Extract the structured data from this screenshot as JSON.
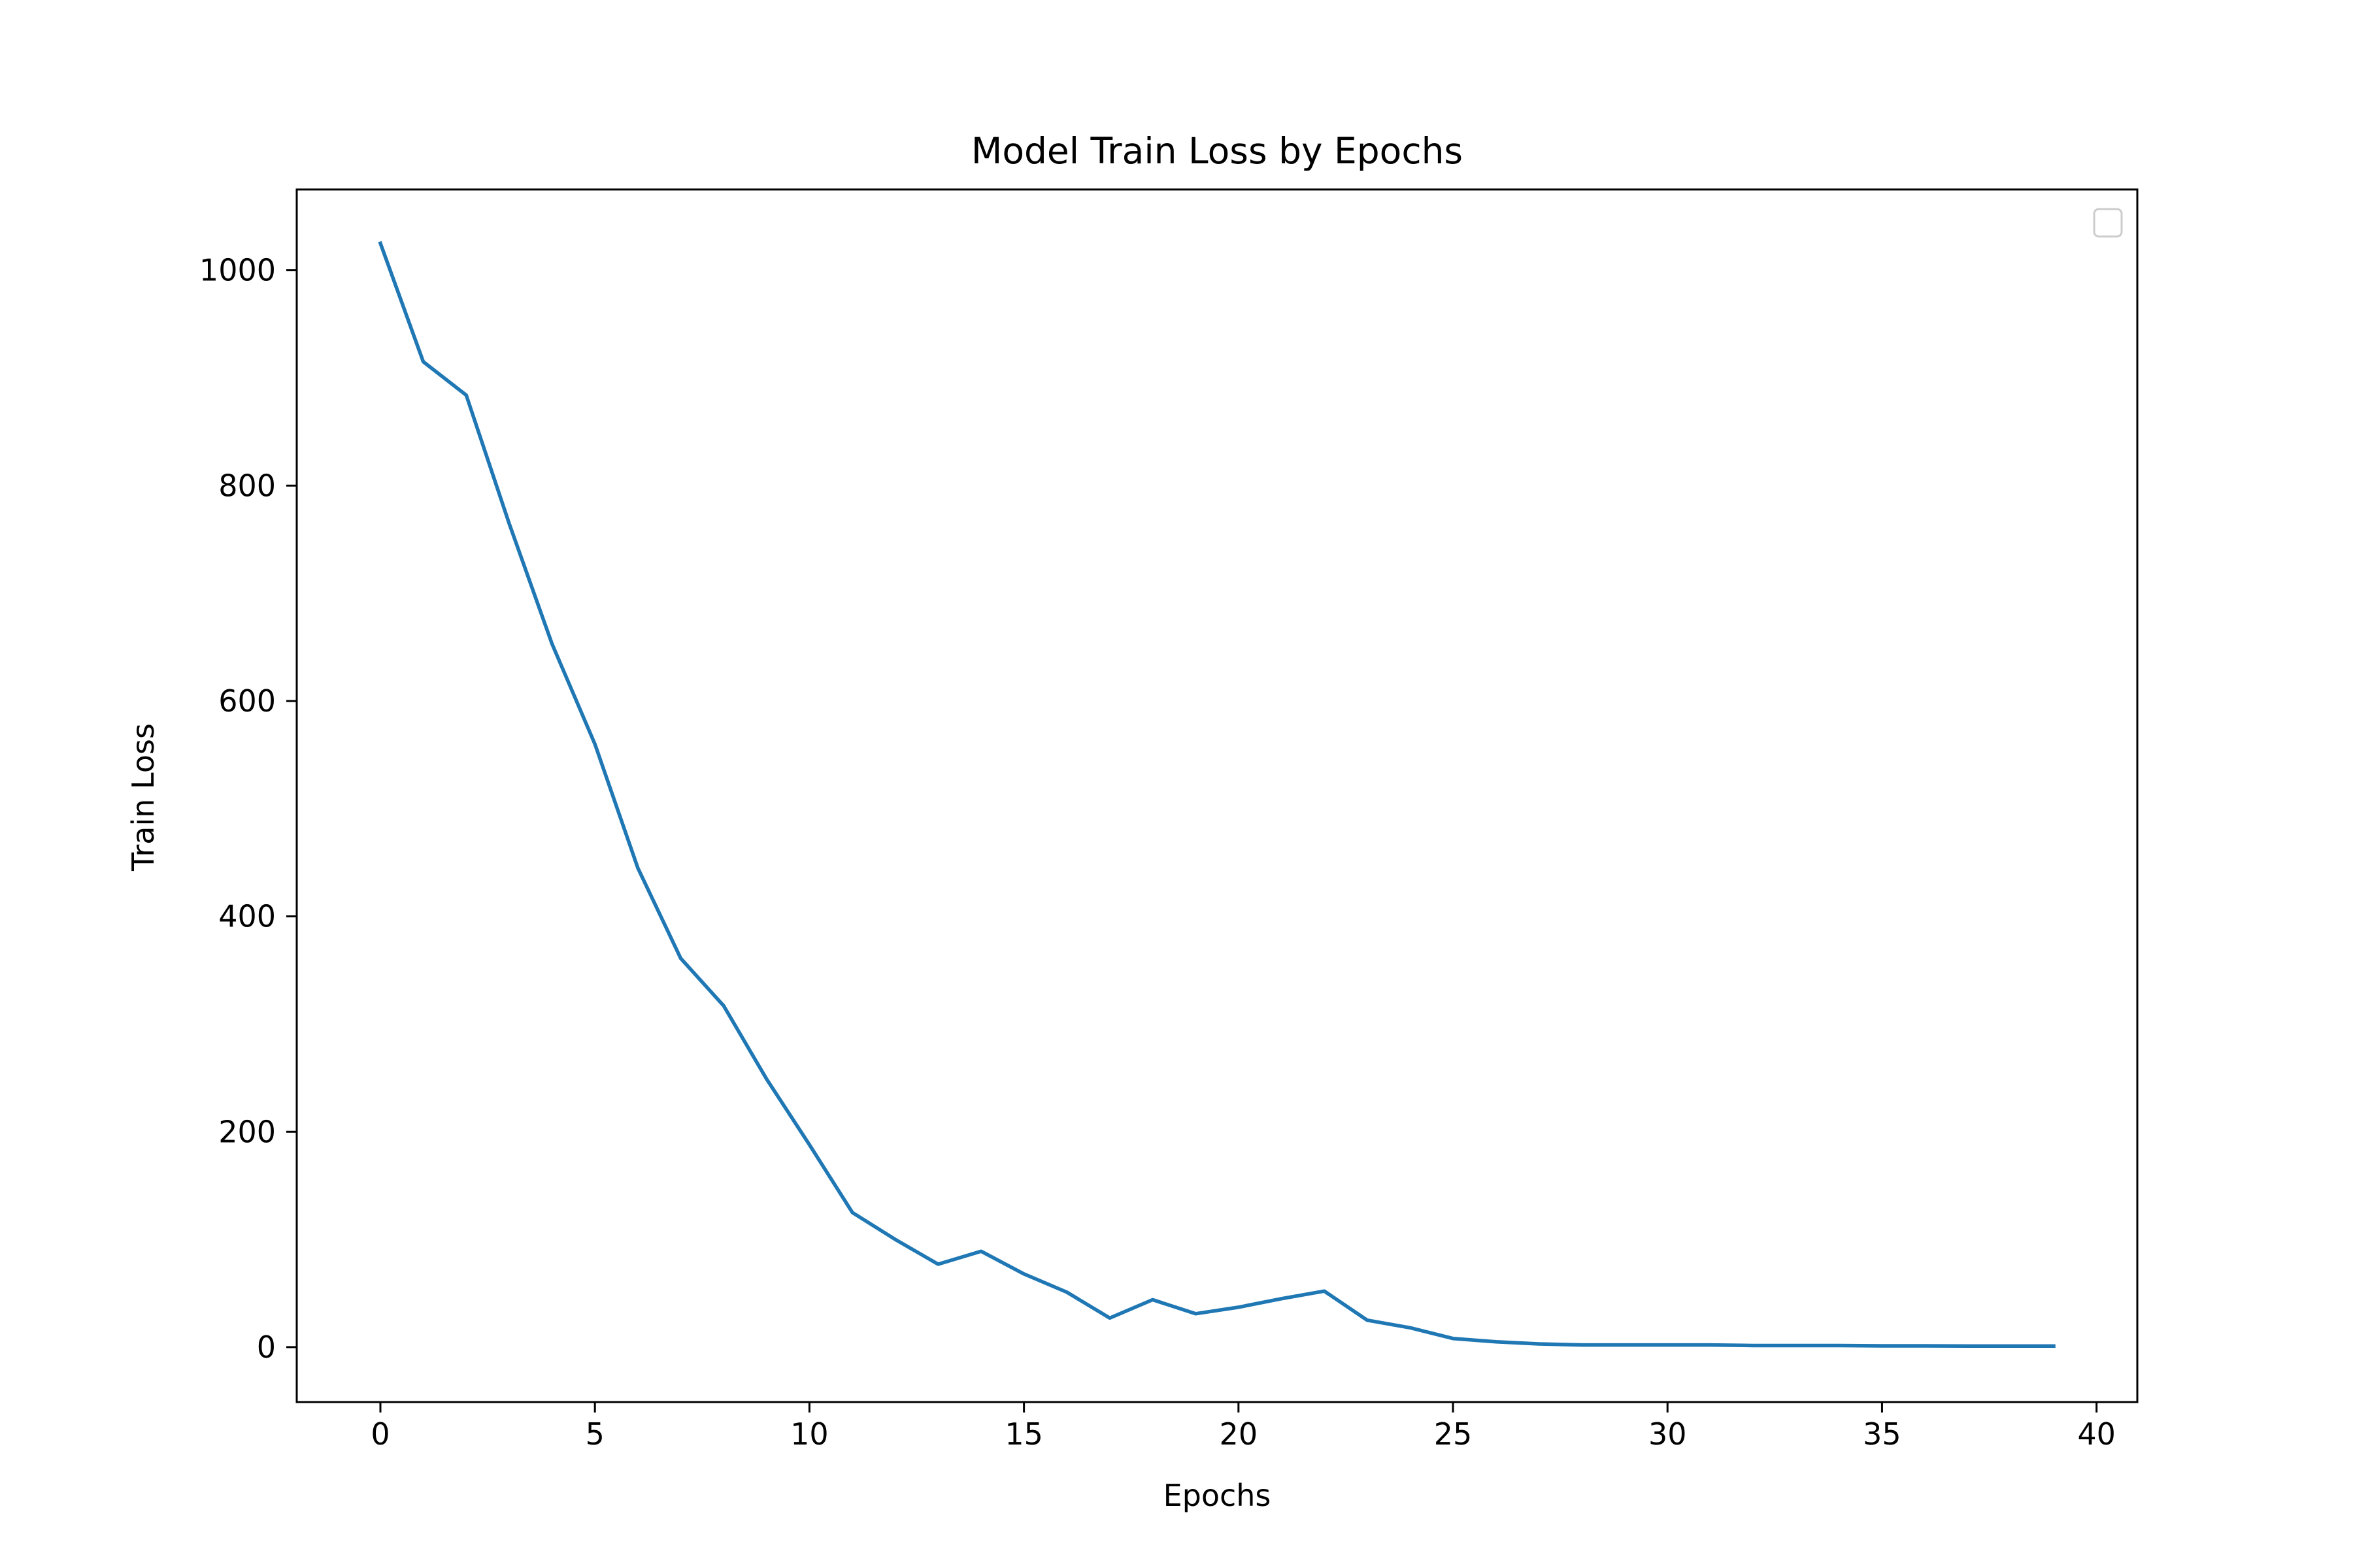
{
  "chart_data": {
    "type": "line",
    "title": "Model Train Loss by Epochs",
    "xlabel": "Epochs",
    "ylabel": "Train Loss",
    "xlim": [
      -1.95,
      40.95
    ],
    "ylim": [
      -51,
      1075
    ],
    "xticks": [
      0,
      5,
      10,
      15,
      20,
      25,
      30,
      35,
      40
    ],
    "yticks": [
      0,
      200,
      400,
      600,
      800,
      1000
    ],
    "grid": false,
    "legend": {
      "placement": "top-right",
      "entries": []
    },
    "series": [
      {
        "color": "#1f77b4",
        "x": [
          0,
          1,
          2,
          3,
          4,
          5,
          6,
          7,
          8,
          9,
          10,
          11,
          12,
          13,
          14,
          15,
          16,
          17,
          18,
          19,
          20,
          21,
          22,
          23,
          24,
          25,
          26,
          27,
          28,
          29,
          30,
          31,
          32,
          33,
          34,
          35,
          36,
          37,
          38,
          39
        ],
        "y": [
          1025,
          915,
          884,
          765,
          653,
          560,
          445,
          361,
          317,
          249,
          188,
          125,
          100,
          77,
          89,
          68,
          51,
          27,
          44,
          31,
          37,
          45,
          52,
          25,
          18,
          8,
          5,
          3,
          2,
          2,
          2,
          2,
          1.5,
          1.5,
          1.5,
          1.2,
          1.2,
          1,
          1,
          1
        ]
      }
    ]
  }
}
